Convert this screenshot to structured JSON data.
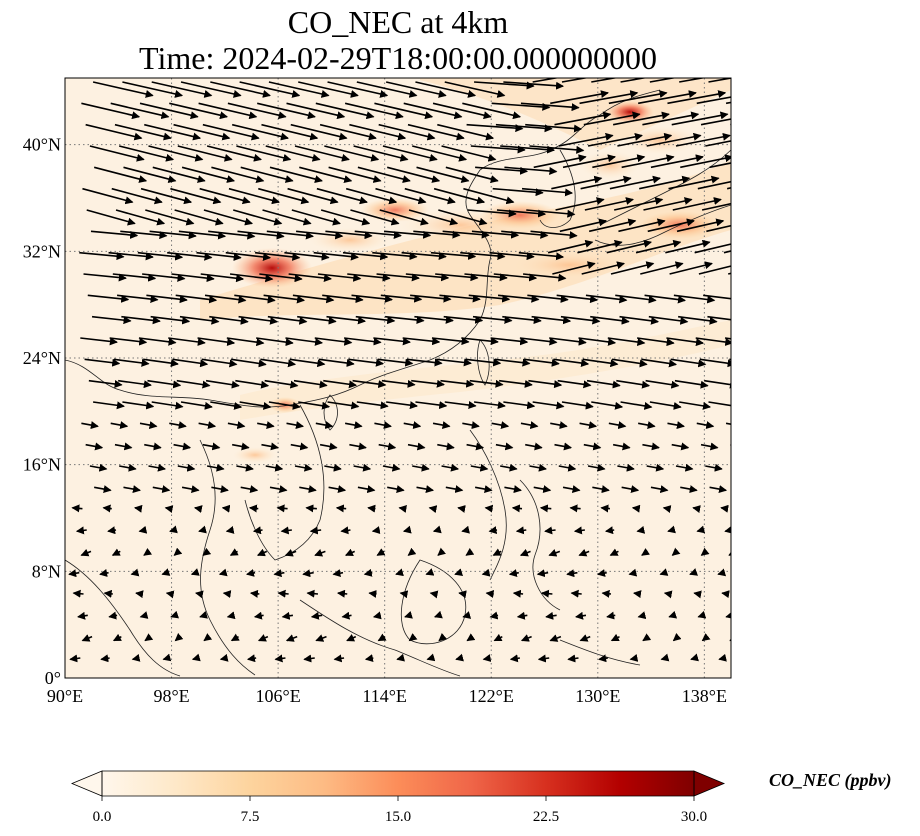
{
  "title_line1": "CO_NEC at 4km",
  "title_line2": "Time: 2024-02-29T18:00:00.000000000",
  "colorbar": {
    "label": "CO_NEC (ppbv)",
    "ticks": [
      "0.0",
      "7.5",
      "15.0",
      "22.5",
      "30.0"
    ],
    "range": [
      0,
      30
    ],
    "extend": "both",
    "colormap": "OrRd",
    "colors": [
      "#fff7ec",
      "#fee8c8",
      "#fdd49e",
      "#fdbb84",
      "#fc8d59",
      "#ef6548",
      "#d7301f",
      "#b30000",
      "#7f0000"
    ]
  },
  "map": {
    "lon_range": [
      90,
      140
    ],
    "lat_range": [
      0,
      45
    ],
    "lon_ticks": [
      90,
      98,
      106,
      114,
      122,
      130,
      138
    ],
    "lat_ticks": [
      0,
      8,
      16,
      24,
      32,
      40
    ],
    "lon_tick_labels": [
      "90°E",
      "98°E",
      "106°E",
      "114°E",
      "122°E",
      "130°E",
      "138°E"
    ],
    "lat_tick_labels": [
      "0°",
      "8°N",
      "16°N",
      "24°N",
      "32°N",
      "40°N"
    ],
    "gridlines": "dotted",
    "vectors": "wind arrows"
  }
}
